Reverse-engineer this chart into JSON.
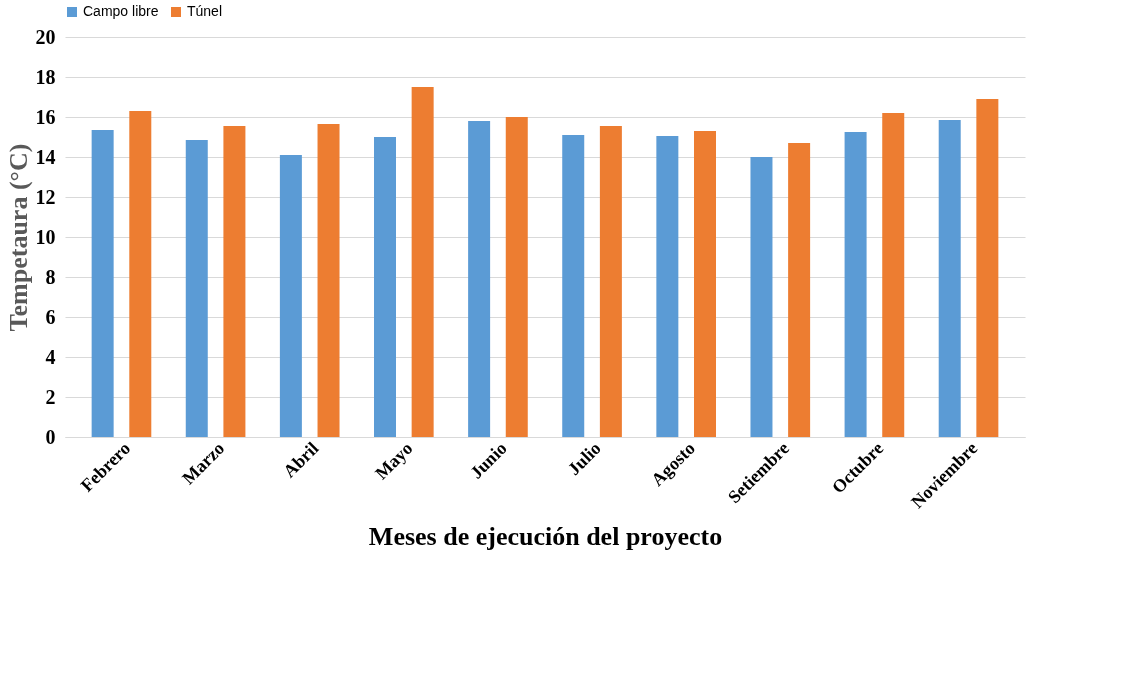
{
  "chart_data": {
    "type": "bar",
    "xlabel": "Meses de ejecución del proyecto",
    "ylabel": "Tempetaura (°C)",
    "categories": [
      "Febrero",
      "Marzo",
      "Abril",
      "Mayo",
      "Junio",
      "Julio",
      "Agosto",
      "Setiembre",
      "Octubre",
      "Noviembre"
    ],
    "series": [
      {
        "name": "Campo libre",
        "color": "#5b9bd5",
        "values": [
          15.35,
          14.85,
          14.1,
          15.0,
          15.8,
          15.1,
          15.05,
          14.0,
          15.25,
          15.85
        ]
      },
      {
        "name": "Túnel",
        "color": "#ed7d31",
        "values": [
          16.3,
          15.55,
          15.65,
          17.5,
          16.0,
          15.55,
          15.3,
          14.7,
          16.2,
          16.9
        ]
      }
    ],
    "ylim": [
      0,
      20
    ],
    "yticks": [
      0,
      2,
      4,
      6,
      8,
      10,
      12,
      14,
      16,
      18,
      20
    ],
    "grid": "y",
    "legend": "top"
  }
}
